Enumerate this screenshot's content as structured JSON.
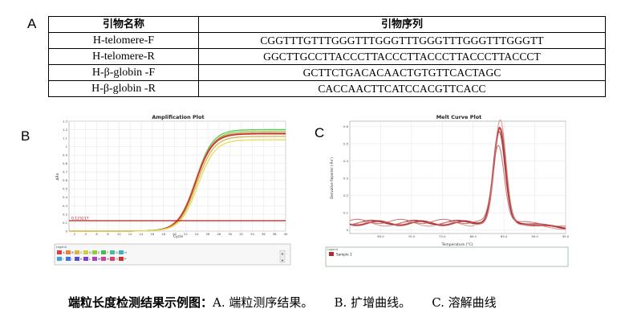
{
  "panel_labels": {
    "a": "A",
    "b": "B",
    "c": "C"
  },
  "table": {
    "headers": [
      "引物名称",
      "引物序列"
    ],
    "rows": [
      [
        "H-telomere-F",
        "CGGTTTGTTTGGGTTTGGGTTTGGGTTTGGGTTTGGGTT"
      ],
      [
        "H-telomere-R",
        "GGCTTGCCTTACCCTTACCCTTACCCTTACCCTTACCCT"
      ],
      [
        "H-β-globin -F",
        "GCTTCTGACACAACTGTGTTCACTAGC"
      ],
      [
        "H-β-globin -R",
        "CACCAACTTCATCCACGTTCACC"
      ]
    ]
  },
  "amplification": {
    "title": "Amplification Plot",
    "xlabel": "Cycle",
    "ylabel": "ΔRn",
    "threshold_label": "0.123217",
    "legend_header": "Legend",
    "legend_row1": [
      "A",
      "B",
      "C",
      "D",
      "E",
      "F",
      "G",
      "H"
    ],
    "legend_row2": [
      "I",
      "J",
      "K",
      "L",
      "M",
      "N",
      "O",
      "P"
    ],
    "legend_colors_row1": [
      "#e23b3b",
      "#e8823a",
      "#e0b43a",
      "#c9d23a",
      "#8ccf3f",
      "#3fbf4f",
      "#3fbf9f",
      "#3fb0bf"
    ],
    "legend_colors_row2": [
      "#3fa0df",
      "#3f70df",
      "#4f4fcf",
      "#7f3fcf",
      "#af3fbf",
      "#cf3f9f",
      "#df3f6f",
      "#cf2f2f"
    ]
  },
  "melt": {
    "title": "Melt Curve Plot",
    "xlabel": "Temperature (°C)",
    "ylabel": "Derivative Reporter (-Rn')",
    "legend_header": "Legend",
    "legend_item": "Sample 1"
  },
  "chart_data": [
    {
      "type": "line",
      "title": "Amplification Plot",
      "xlabel": "Cycle",
      "ylabel": "ΔRn",
      "xlim": [
        1,
        40
      ],
      "ylim": [
        0,
        1.3
      ],
      "x_ticks": [
        2,
        4,
        6,
        8,
        10,
        12,
        14,
        16,
        18,
        20,
        22,
        24,
        26,
        28,
        30,
        32,
        34,
        36,
        38,
        40
      ],
      "y_ticks": [
        0,
        0.1,
        0.2,
        0.3,
        0.4,
        0.5,
        0.6,
        0.7,
        0.8,
        0.9,
        1,
        1.1,
        1.2,
        1.3
      ],
      "threshold": 0.123217,
      "series": [
        {
          "color": "#5cc75c",
          "plateau": 1.2,
          "midpoint": 23.8,
          "slope": 1.55
        },
        {
          "color": "#8fce4f",
          "plateau": 1.18,
          "midpoint": 23.9,
          "slope": 1.55
        },
        {
          "color": "#e0663a",
          "plateau": 1.16,
          "midpoint": 23.7,
          "slope": 1.55
        },
        {
          "color": "#c03030",
          "plateau": 1.15,
          "midpoint": 23.8,
          "slope": 1.55
        },
        {
          "color": "#d8b44a",
          "plateau": 1.12,
          "midpoint": 24.0,
          "slope": 1.55
        },
        {
          "color": "#e4de5a",
          "plateau": 1.08,
          "midpoint": 24.2,
          "slope": 1.55
        }
      ]
    },
    {
      "type": "line",
      "title": "Melt Curve Plot",
      "xlabel": "Temperature (°C)",
      "ylabel": "Derivative Reporter (-Rn')",
      "xlim": [
        60,
        95
      ],
      "ylim": [
        -0.02,
        0.63
      ],
      "x_ticks": [
        65,
        70,
        75,
        80,
        85,
        90,
        95
      ],
      "x_tick_labels": [
        "65.0",
        "70.0",
        "75.0",
        "80.0",
        "85.0",
        "90.0",
        "95.0"
      ],
      "y_ticks": [
        0,
        0.1,
        0.2,
        0.3,
        0.4,
        0.5,
        0.6
      ],
      "y_tick_labels": [
        "0",
        "0.1",
        "0.2",
        "0.3",
        "0.4",
        "0.5",
        "0.6"
      ],
      "series": [
        {
          "name": "Sample 1",
          "color": "#b52a2a",
          "peak_temp": 84.3,
          "peak": 0.55,
          "baseline": 0.04
        },
        {
          "color": "#9a1f1f",
          "peak_temp": 84.2,
          "peak": 0.52,
          "baseline": 0.045
        },
        {
          "color": "#d08a8a",
          "peak_temp": 84.4,
          "peak": 0.6,
          "baseline": 0.035
        },
        {
          "color": "#c86060",
          "peak_temp": 84.1,
          "peak": 0.44,
          "baseline": 0.05
        }
      ]
    }
  ],
  "caption": {
    "bold": "端粒长度检测结果示例图：",
    "parts": [
      "A. 端粒测序结果。",
      "B. 扩增曲线。",
      "C. 溶解曲线"
    ]
  }
}
